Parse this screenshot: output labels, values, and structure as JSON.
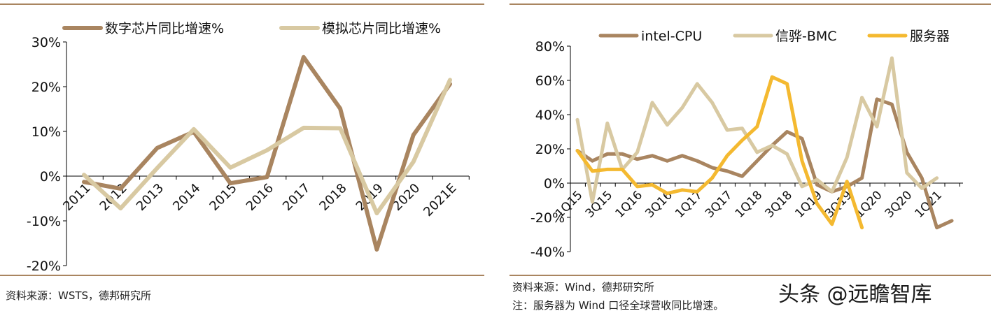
{
  "colors": {
    "brown": "#A98560",
    "beige": "#D8C9A2",
    "gold": "#F4B930",
    "rule": "#A98560"
  },
  "left": {
    "source": "资料来源：WSTS，德邦研究所",
    "chart_data": {
      "type": "line",
      "categories": [
        "2011",
        "2012",
        "2013",
        "2014",
        "2015",
        "2016",
        "2017",
        "2018",
        "2019",
        "2020",
        "2021E"
      ],
      "series": [
        {
          "name": "数字芯片同比增速%",
          "color": "#A98560",
          "values": [
            -1.3,
            -2.8,
            6.3,
            9.9,
            -1.6,
            -0.2,
            26.6,
            15.1,
            -16.4,
            9.2,
            20.6
          ]
        },
        {
          "name": "模拟芯片同比增速%",
          "color": "#D8C9A2",
          "values": [
            0.3,
            -7.2,
            1.8,
            10.5,
            1.9,
            5.8,
            10.8,
            10.7,
            -8.3,
            3.2,
            21.5
          ]
        }
      ],
      "yticks": [
        "30%",
        "20%",
        "10%",
        "0%",
        "-10%",
        "-20%"
      ],
      "ylim": [
        -20,
        30
      ],
      "legend": "top"
    }
  },
  "right": {
    "source": "资料来源：Wind，德邦研究所",
    "note": "注：服务器为 Wind 口径全球营收同比增速。",
    "watermark": "头条 @远瞻智库",
    "chart_data": {
      "type": "line",
      "categories": [
        "1Q15",
        "2Q15",
        "3Q15",
        "4Q15",
        "1Q16",
        "2Q16",
        "3Q16",
        "4Q16",
        "1Q17",
        "2Q17",
        "3Q17",
        "4Q17",
        "1Q18",
        "2Q18",
        "3Q18",
        "4Q18",
        "1Q19",
        "2Q19",
        "3Q19",
        "4Q19",
        "1Q20",
        "2Q20",
        "3Q20",
        "4Q20",
        "1Q21",
        "2Q21"
      ],
      "tick_labels": [
        "1Q15",
        "3Q15",
        "1Q16",
        "3Q16",
        "1Q17",
        "3Q17",
        "1Q18",
        "3Q18",
        "1Q19",
        "3Q19",
        "1Q20",
        "3Q20",
        "1Q21"
      ],
      "series": [
        {
          "name": "intel-CPU",
          "color": "#A98560",
          "values": [
            19,
            13,
            17,
            17,
            14,
            16,
            13,
            16,
            13,
            9,
            7,
            4,
            13,
            22,
            30,
            26,
            -1,
            -5,
            -2,
            3,
            49,
            46,
            18,
            3,
            -26,
            -22
          ]
        },
        {
          "name": "信骅-BMC",
          "color": "#D8C9A2",
          "values": [
            37,
            -11,
            35,
            8,
            18,
            47,
            34,
            44,
            58,
            47,
            31,
            32,
            18,
            22,
            17,
            -2,
            2,
            -5,
            15,
            50,
            33,
            73,
            6,
            -3,
            3,
            null
          ]
        },
        {
          "name": "服务器",
          "color": "#F4B930",
          "values": [
            19,
            7,
            8,
            8,
            -2,
            -1,
            -6,
            -4,
            -5,
            3,
            16,
            25,
            33,
            62,
            58,
            13,
            -12,
            -24,
            1,
            -26,
            null,
            null,
            null,
            null,
            null,
            null
          ]
        }
      ],
      "yticks": [
        "80%",
        "60%",
        "40%",
        "20%",
        "0%",
        "-20%",
        "-40%"
      ],
      "ylim": [
        -40,
        80
      ],
      "legend": "top"
    }
  }
}
